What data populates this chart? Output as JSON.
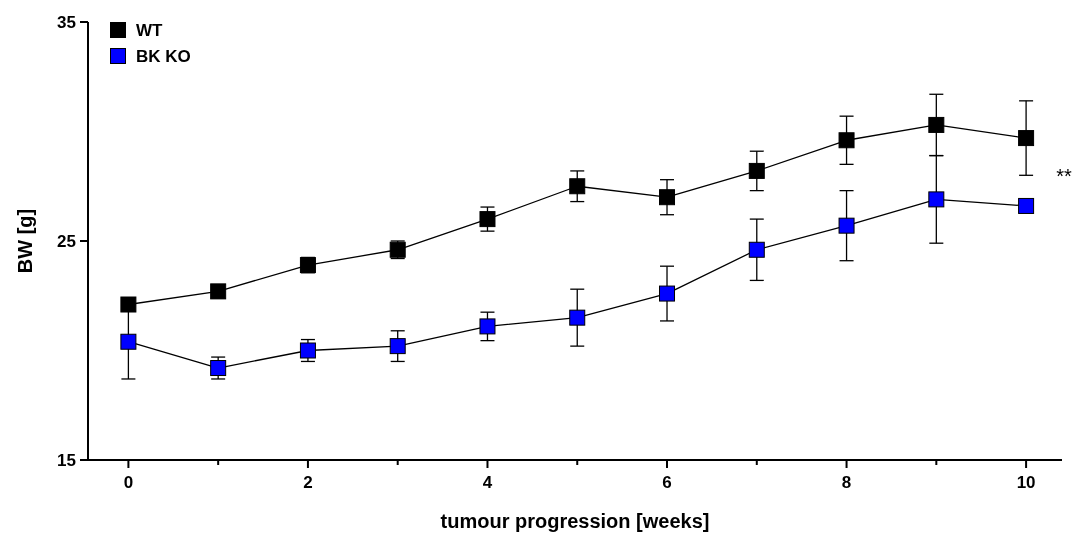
{
  "chart_data": {
    "type": "line",
    "xlabel": "tumour progression [weeks]",
    "ylabel": "BW [g]",
    "x": [
      0,
      1,
      2,
      3,
      4,
      5,
      6,
      7,
      8,
      9,
      10
    ],
    "xlim": [
      -0.45,
      10.4
    ],
    "xticks": [
      0,
      {
        "value": 1,
        "label": null
      },
      2,
      {
        "value": 3,
        "label": null
      },
      4,
      {
        "value": 5,
        "label": null
      },
      6,
      {
        "value": 7,
        "label": null
      },
      8,
      {
        "value": 9,
        "label": null
      },
      10
    ],
    "ylim": [
      15,
      35
    ],
    "yticks": [
      15,
      25,
      35
    ],
    "series": [
      {
        "name": "WT",
        "color": "#000000",
        "values": [
          22.1,
          22.7,
          23.9,
          24.6,
          26.0,
          27.5,
          27.0,
          28.2,
          29.6,
          30.3,
          29.7
        ],
        "errors": [
          0.3,
          0.3,
          0.35,
          0.4,
          0.55,
          0.7,
          0.8,
          0.9,
          1.1,
          1.4,
          1.7
        ]
      },
      {
        "name": "BK KO",
        "color": "#0000ff",
        "values": [
          20.4,
          19.2,
          20.0,
          20.2,
          21.1,
          21.5,
          22.6,
          24.6,
          25.7,
          26.9,
          26.6
        ],
        "errors": [
          1.7,
          0.5,
          0.5,
          0.7,
          0.65,
          1.3,
          1.25,
          1.4,
          1.6,
          2.0,
          null
        ]
      }
    ],
    "annotations": [
      "**"
    ],
    "marker": "square",
    "line_style": "solid",
    "legend": "top left",
    "grid": false
  }
}
